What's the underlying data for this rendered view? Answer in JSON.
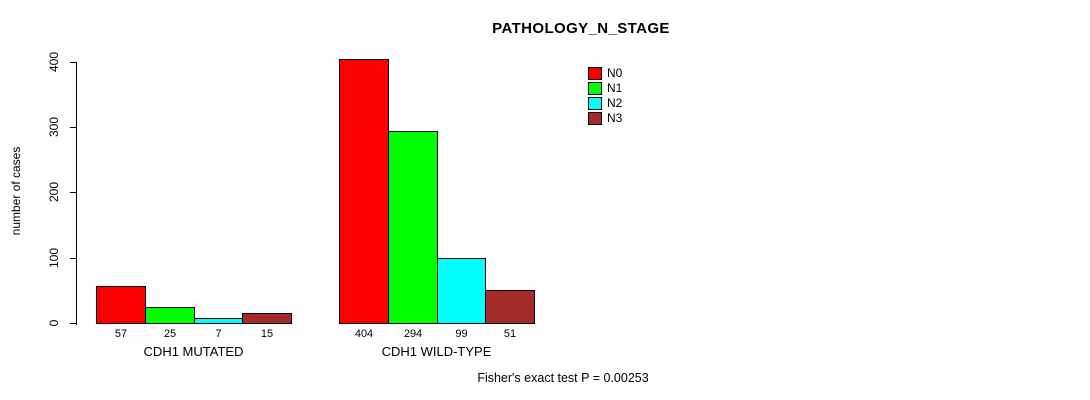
{
  "chart_data": {
    "type": "bar",
    "title": "PATHOLOGY_N_STAGE",
    "ylabel": "number of cases",
    "xlabel": "",
    "ylim": [
      0,
      400
    ],
    "yticks": [
      "0",
      "100",
      "200",
      "300",
      "400"
    ],
    "categories": [
      "CDH1 MUTATED",
      "CDH1 WILD-TYPE"
    ],
    "series": [
      {
        "name": "N0",
        "color": "#FF0000",
        "values": [
          57,
          404
        ]
      },
      {
        "name": "N1",
        "color": "#00FF00",
        "values": [
          25,
          294
        ]
      },
      {
        "name": "N2",
        "color": "#00FFFF",
        "values": [
          7,
          99
        ]
      },
      {
        "name": "N3",
        "color": "#A52A2A",
        "values": [
          15,
          51
        ]
      }
    ],
    "bar_value_labels": [
      [
        57,
        25,
        7,
        15
      ],
      [
        404,
        294,
        99,
        51
      ]
    ],
    "legend": {
      "position": "top-right",
      "entries": [
        "N0",
        "N1",
        "N2",
        "N3"
      ]
    },
    "annotation": "Fisher's exact test P = 0.00253",
    "grid": false,
    "background": "#FFFFFF",
    "bar_border_color": "#000000"
  }
}
